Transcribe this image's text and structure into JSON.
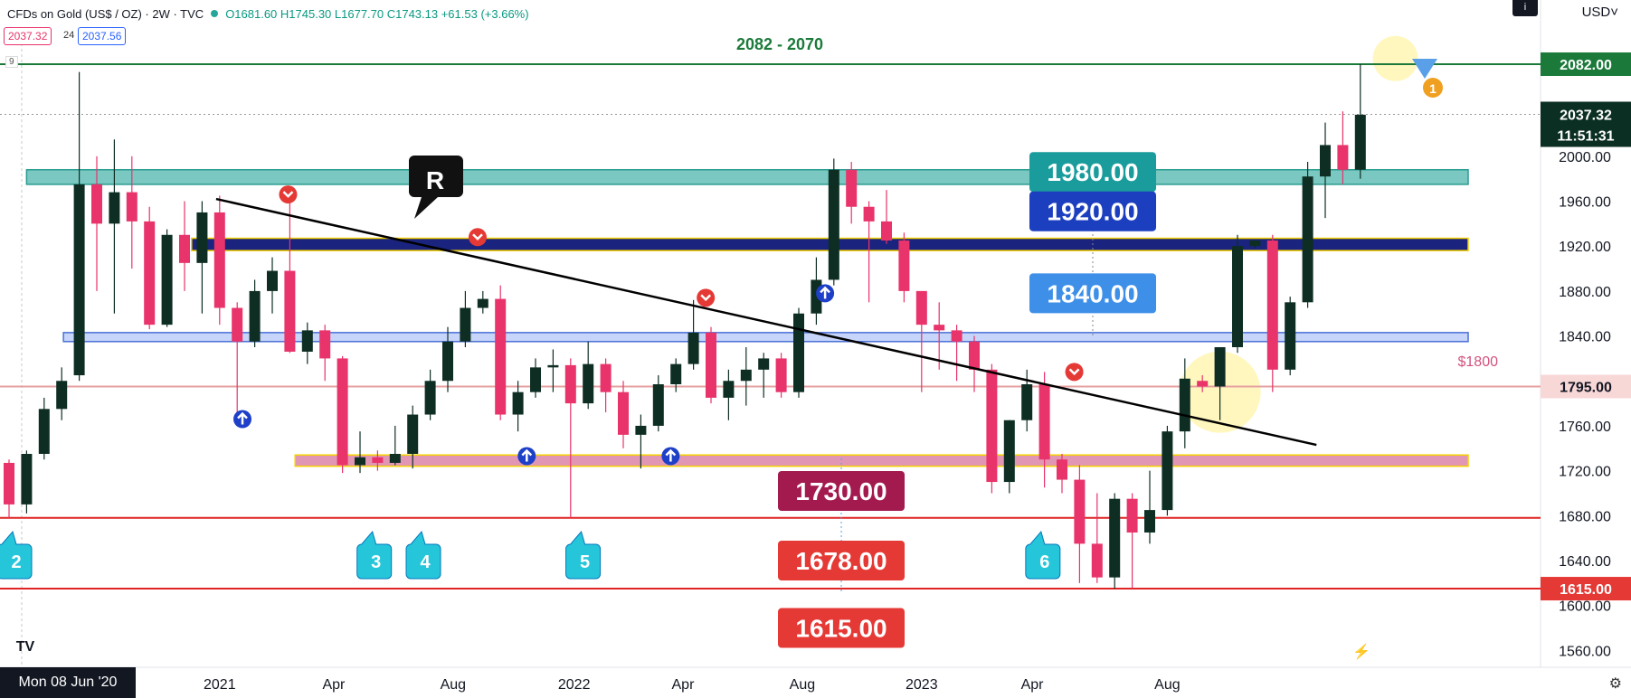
{
  "header": {
    "symbol": "CFDs on Gold (US$ / OZ) · 2W · TVC",
    "ohlc": "O1681.60 H1745.30 L1677.70 C1743.13 +61.53 (+3.66%)",
    "bid": "2037.32",
    "spread": "24",
    "ask": "2037.56",
    "currency": "USD˅",
    "info_icon": "i",
    "interval_marker": "9"
  },
  "colors": {
    "up": "#0e2e24",
    "down": "#e8336b",
    "teal_zone": "#4db6ac",
    "blue_zone": "#1a237e",
    "lightblue_zone": "#b3c7f7",
    "pink_zone": "#d7749b",
    "red_line": "#e02424",
    "green_line": "#1b7a3a"
  },
  "date_box": "Mon 08 Jun '20",
  "chart_data": {
    "type": "candlestick",
    "y_axis": {
      "ylim": [
        1545,
        2115
      ],
      "ticks": [
        1560,
        1600,
        1640,
        1680,
        1720,
        1760,
        1800,
        1840,
        1880,
        1920,
        1960,
        2000
      ],
      "tick_labels": [
        "1560.00",
        "1600.00",
        "1640.00",
        "1680.00",
        "1720.00",
        "1760.00",
        "1800.00",
        "1840.00",
        "1880.00",
        "1920.00",
        "1960.00",
        "2000.00"
      ]
    },
    "x_axis": {
      "labels": [
        {
          "text": "2021",
          "i": 12.0
        },
        {
          "text": "Apr",
          "i": 18.5
        },
        {
          "text": "Aug",
          "i": 25.3
        },
        {
          "text": "2022",
          "i": 32.2
        },
        {
          "text": "Apr",
          "i": 38.4
        },
        {
          "text": "Aug",
          "i": 45.2
        },
        {
          "text": "2023",
          "i": 52.0
        },
        {
          "text": "Apr",
          "i": 58.3
        },
        {
          "text": "Aug",
          "i": 66.0
        }
      ]
    },
    "candles": [
      [
        1727,
        1690,
        1730,
        1678
      ],
      [
        1690,
        1735,
        1738,
        1682
      ],
      [
        1735,
        1775,
        1785,
        1730
      ],
      [
        1775,
        1800,
        1812,
        1765
      ],
      [
        1805,
        1975,
        2075,
        1800
      ],
      [
        1975,
        1940,
        2000,
        1880
      ],
      [
        1940,
        1968,
        2015,
        1860
      ],
      [
        1968,
        1942,
        2000,
        1900
      ],
      [
        1942,
        1850,
        1955,
        1846
      ],
      [
        1850,
        1930,
        1935,
        1848
      ],
      [
        1930,
        1905,
        1960,
        1880
      ],
      [
        1905,
        1950,
        1960,
        1860
      ],
      [
        1950,
        1865,
        1965,
        1850
      ],
      [
        1865,
        1835,
        1870,
        1770
      ],
      [
        1835,
        1880,
        1890,
        1830
      ],
      [
        1880,
        1898,
        1910,
        1860
      ],
      [
        1898,
        1826,
        1960,
        1825
      ],
      [
        1826,
        1845,
        1852,
        1815
      ],
      [
        1845,
        1820,
        1850,
        1800
      ],
      [
        1820,
        1725,
        1822,
        1718
      ],
      [
        1725,
        1732,
        1755,
        1718
      ],
      [
        1732,
        1727,
        1738,
        1720
      ],
      [
        1727,
        1735,
        1760,
        1725
      ],
      [
        1735,
        1770,
        1778,
        1722
      ],
      [
        1770,
        1800,
        1810,
        1765
      ],
      [
        1800,
        1835,
        1848,
        1790
      ],
      [
        1835,
        1865,
        1880,
        1830
      ],
      [
        1865,
        1873,
        1880,
        1860
      ],
      [
        1873,
        1770,
        1885,
        1765
      ],
      [
        1770,
        1790,
        1800,
        1755
      ],
      [
        1790,
        1812,
        1820,
        1785
      ],
      [
        1812,
        1814,
        1828,
        1790
      ],
      [
        1814,
        1780,
        1820,
        1678
      ],
      [
        1780,
        1815,
        1835,
        1775
      ],
      [
        1815,
        1790,
        1820,
        1772
      ],
      [
        1790,
        1752,
        1800,
        1740
      ],
      [
        1752,
        1760,
        1770,
        1722
      ],
      [
        1760,
        1797,
        1805,
        1755
      ],
      [
        1797,
        1815,
        1820,
        1790
      ],
      [
        1815,
        1843,
        1872,
        1810
      ],
      [
        1843,
        1785,
        1848,
        1780
      ],
      [
        1785,
        1800,
        1810,
        1765
      ],
      [
        1800,
        1810,
        1830,
        1778
      ],
      [
        1810,
        1820,
        1825,
        1785
      ],
      [
        1820,
        1790,
        1825,
        1785
      ],
      [
        1790,
        1860,
        1865,
        1785
      ],
      [
        1860,
        1890,
        1910,
        1850
      ],
      [
        1890,
        1988,
        1998,
        1885
      ],
      [
        1988,
        1955,
        1995,
        1940
      ],
      [
        1955,
        1942,
        1960,
        1870
      ],
      [
        1942,
        1925,
        1970,
        1922
      ],
      [
        1925,
        1880,
        1932,
        1870
      ],
      [
        1880,
        1850,
        1880,
        1790
      ],
      [
        1850,
        1845,
        1870,
        1810
      ],
      [
        1845,
        1835,
        1850,
        1800
      ],
      [
        1835,
        1810,
        1840,
        1790
      ],
      [
        1810,
        1710,
        1815,
        1700
      ],
      [
        1710,
        1765,
        1765,
        1700
      ],
      [
        1765,
        1797,
        1810,
        1755
      ],
      [
        1797,
        1730,
        1808,
        1705
      ],
      [
        1730,
        1712,
        1735,
        1700
      ],
      [
        1712,
        1655,
        1725,
        1620
      ],
      [
        1655,
        1625,
        1700,
        1620
      ],
      [
        1625,
        1695,
        1700,
        1615
      ],
      [
        1695,
        1665,
        1700,
        1615
      ],
      [
        1665,
        1685,
        1720,
        1655
      ],
      [
        1685,
        1755,
        1760,
        1680
      ],
      [
        1755,
        1802,
        1820,
        1740
      ],
      [
        1800,
        1795,
        1805,
        1790
      ],
      [
        1795,
        1830,
        1828,
        1765
      ],
      [
        1830,
        1920,
        1930,
        1825
      ],
      [
        1920,
        1925,
        1925,
        1918
      ],
      [
        1925,
        1810,
        1930,
        1790
      ],
      [
        1810,
        1870,
        1875,
        1805
      ],
      [
        1870,
        1982,
        1995,
        1865
      ],
      [
        1982,
        2010,
        2030,
        1945
      ],
      [
        2010,
        1988,
        2040,
        1975
      ],
      [
        1988,
        2037,
        2082,
        1980
      ]
    ],
    "zones": [
      {
        "name": "teal",
        "from": 1975,
        "to": 1988,
        "x_start": 1.0
      },
      {
        "name": "blue",
        "from": 1916,
        "to": 1927,
        "x_start": 10.4
      },
      {
        "name": "lightblue",
        "from": 1835,
        "to": 1843,
        "x_start": 3.1
      },
      {
        "name": "pink",
        "from": 1724,
        "to": 1734,
        "x_start": 16.3
      }
    ],
    "hlines": [
      {
        "name": "resistance-2082",
        "y": 2082,
        "color": "#1b7a3a"
      },
      {
        "name": "price-1795",
        "y": 1795,
        "color": "#e6a1a1"
      },
      {
        "name": "support-1678",
        "y": 1678,
        "color": "#e02424"
      },
      {
        "name": "support-1615",
        "y": 1615,
        "color": "#e02424"
      },
      {
        "name": "last-price",
        "y": 2037.32,
        "color": "#999999",
        "dashed": true
      }
    ],
    "trendline": {
      "x1": 11.8,
      "y1": 1962,
      "x2": 74.5,
      "y2": 1743
    },
    "level_labels": [
      {
        "text": "1980.00",
        "y": 1986,
        "bg": "#1a9c9c"
      },
      {
        "text": "1920.00",
        "y": 1951,
        "bg": "#1c3fbf"
      },
      {
        "text": "1840.00",
        "y": 1878,
        "bg": "#3d8fe8"
      },
      {
        "text": "1730.00",
        "y": 1702,
        "bg": "#a31a4f"
      },
      {
        "text": "1678.00",
        "y": 1640,
        "bg": "#e53935"
      },
      {
        "text": "1615.00",
        "y": 1580,
        "bg": "#e53935"
      }
    ],
    "annotations": {
      "range_label": "2082 - 2070",
      "r_label": "R",
      "usd_1800_label": "$1800",
      "medal_label": "1"
    },
    "callouts": [
      {
        "text": "2",
        "i": 0.0
      },
      {
        "text": "3",
        "i": 20.5
      },
      {
        "text": "4",
        "i": 23.3
      },
      {
        "text": "5",
        "i": 32.4
      },
      {
        "text": "6",
        "i": 58.6
      }
    ],
    "arrows_down": [
      {
        "i": 15.9,
        "y": 1966
      },
      {
        "i": 26.7,
        "y": 1928
      },
      {
        "i": 39.7,
        "y": 1874
      },
      {
        "i": 60.7,
        "y": 1808
      }
    ],
    "arrows_up": [
      {
        "i": 13.3,
        "y": 1766
      },
      {
        "i": 29.5,
        "y": 1733
      },
      {
        "i": 37.7,
        "y": 1733
      },
      {
        "i": 46.5,
        "y": 1878
      }
    ],
    "highlights": [
      {
        "i": 69.0,
        "y": 1790,
        "r": 45
      },
      {
        "i": 79.0,
        "y": 2087,
        "r": 25
      }
    ],
    "axis_flags": [
      {
        "text": "2082.00",
        "y": 2082,
        "bg": "#1b7a3a"
      },
      {
        "text": "1795.00",
        "y": 1795,
        "bg": "#f8d7d7",
        "fg": "#131722"
      },
      {
        "text": "1615.00",
        "y": 1615,
        "bg": "#e53935"
      }
    ],
    "price_flag": {
      "text": "2037.32",
      "timer": "11:51:31",
      "y": 2037.32,
      "bg": "#0b2f23"
    }
  }
}
